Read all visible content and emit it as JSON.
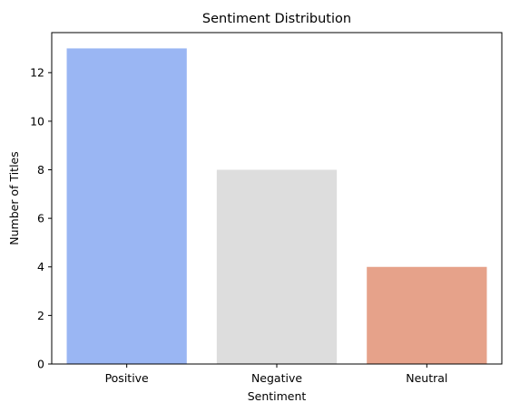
{
  "chart_data": {
    "type": "bar",
    "title": "Sentiment Distribution",
    "xlabel": "Sentiment",
    "ylabel": "Number of Titles",
    "categories": [
      "Positive",
      "Negative",
      "Neutral"
    ],
    "values": [
      13,
      8,
      4
    ],
    "colors": [
      "#9ab6f3",
      "#dddddd",
      "#e6a28a"
    ],
    "ylim": [
      0,
      13.65
    ],
    "yticks": [
      0,
      2,
      4,
      6,
      8,
      10,
      12
    ],
    "grid": false,
    "legend": "none"
  }
}
